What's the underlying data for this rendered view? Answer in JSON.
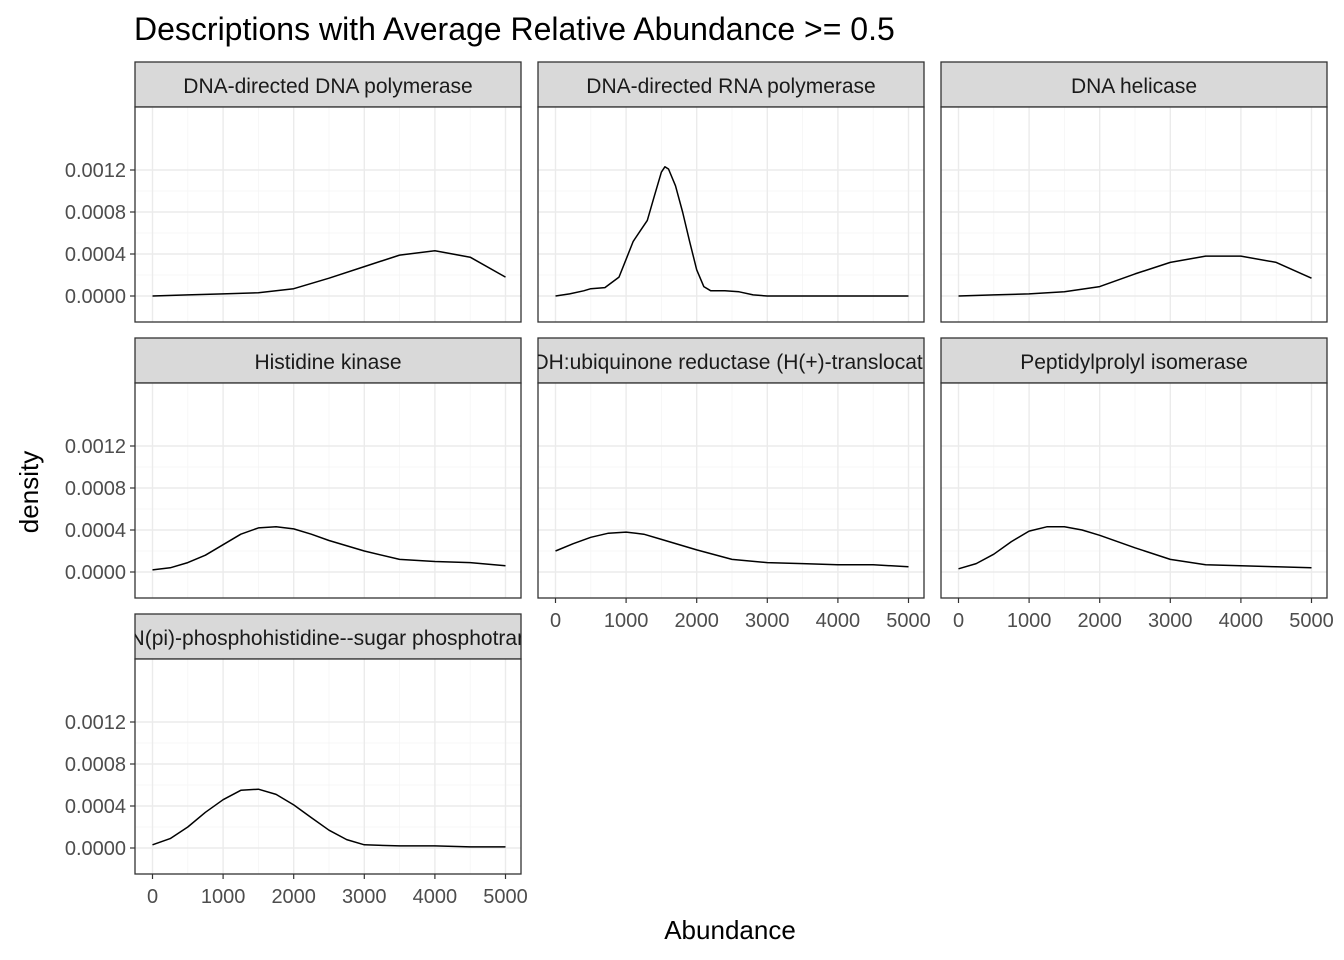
{
  "chart_data": {
    "type": "area",
    "title": "Descriptions with Average Relative Abundance >= 0.5",
    "xlabel": "Abundance",
    "ylabel": "density",
    "xlim": [
      0,
      5000
    ],
    "ylim": [
      0,
      0.0013
    ],
    "x_ticks": [
      0,
      1000,
      2000,
      3000,
      4000,
      5000
    ],
    "x_tick_labels": [
      "0",
      "1000",
      "2000",
      "3000",
      "4000",
      "5000"
    ],
    "y_ticks": [
      0,
      0.0004,
      0.0008,
      0.0012
    ],
    "y_tick_labels": [
      "0.0000",
      "0.0004",
      "0.0008",
      "0.0012"
    ],
    "grid": true,
    "colors": {
      "line": "#000000",
      "strip_fill": "#d9d9d9",
      "panel_border": "#333333"
    },
    "facets": [
      {
        "name": "DNA-directed DNA polymerase",
        "x": [
          0,
          500,
          1000,
          1500,
          2000,
          2500,
          3000,
          3500,
          4000,
          4500,
          5000
        ],
        "y": [
          0.0,
          1e-05,
          2e-05,
          3e-05,
          7e-05,
          0.00017,
          0.00028,
          0.00039,
          0.00043,
          0.00037,
          0.00018
        ]
      },
      {
        "name": "DNA-directed RNA polymerase",
        "x": [
          0,
          200,
          400,
          500,
          700,
          900,
          1000,
          1100,
          1200,
          1300,
          1400,
          1500,
          1550,
          1600,
          1700,
          1800,
          1900,
          2000,
          2100,
          2200,
          2400,
          2600,
          2800,
          3000,
          4000,
          5000
        ],
        "y": [
          0.0,
          2e-05,
          5e-05,
          7e-05,
          8e-05,
          0.00018,
          0.00035,
          0.00052,
          0.00062,
          0.00072,
          0.00095,
          0.00118,
          0.00123,
          0.00121,
          0.00105,
          0.0008,
          0.00052,
          0.00025,
          9e-05,
          5e-05,
          5e-05,
          4e-05,
          1e-05,
          0.0,
          0.0,
          0.0
        ]
      },
      {
        "name": "DNA helicase",
        "x": [
          0,
          500,
          1000,
          1500,
          2000,
          2500,
          3000,
          3500,
          4000,
          4500,
          5000
        ],
        "y": [
          0.0,
          1e-05,
          2e-05,
          4e-05,
          9e-05,
          0.00021,
          0.00032,
          0.00038,
          0.00038,
          0.00032,
          0.00017
        ]
      },
      {
        "name": "Histidine kinase",
        "x": [
          0,
          250,
          500,
          750,
          1000,
          1250,
          1500,
          1750,
          2000,
          2250,
          2500,
          3000,
          3500,
          4000,
          4500,
          5000
        ],
        "y": [
          2e-05,
          4e-05,
          9e-05,
          0.00016,
          0.00026,
          0.00036,
          0.00042,
          0.00043,
          0.00041,
          0.00036,
          0.0003,
          0.0002,
          0.00012,
          0.0001,
          9e-05,
          6e-05
        ]
      },
      {
        "name": "NADH:ubiquinone reductase (H(+)-translocating)",
        "x": [
          0,
          250,
          500,
          750,
          1000,
          1250,
          1500,
          2000,
          2500,
          3000,
          3500,
          4000,
          4500,
          5000
        ],
        "y": [
          0.0002,
          0.00027,
          0.00033,
          0.00037,
          0.00038,
          0.00036,
          0.00031,
          0.00021,
          0.00012,
          9e-05,
          8e-05,
          7e-05,
          7e-05,
          5e-05
        ]
      },
      {
        "name": "Peptidylprolyl isomerase",
        "x": [
          0,
          250,
          500,
          750,
          1000,
          1250,
          1500,
          1750,
          2000,
          2500,
          3000,
          3500,
          4000,
          4500,
          5000
        ],
        "y": [
          3e-05,
          8e-05,
          0.00017,
          0.00029,
          0.00039,
          0.00043,
          0.00043,
          0.0004,
          0.00035,
          0.00023,
          0.00012,
          7e-05,
          6e-05,
          5e-05,
          4e-05
        ]
      },
      {
        "name": "protein-N(pi)-phosphohistidine--sugar phosphotransferase",
        "x": [
          0,
          250,
          500,
          750,
          1000,
          1250,
          1500,
          1750,
          2000,
          2250,
          2500,
          2750,
          3000,
          3500,
          4000,
          4500,
          5000
        ],
        "y": [
          3e-05,
          9e-05,
          0.0002,
          0.00034,
          0.00046,
          0.00055,
          0.00056,
          0.00051,
          0.00041,
          0.00029,
          0.00017,
          8e-05,
          3e-05,
          2e-05,
          2e-05,
          1e-05,
          1e-05
        ]
      }
    ]
  }
}
